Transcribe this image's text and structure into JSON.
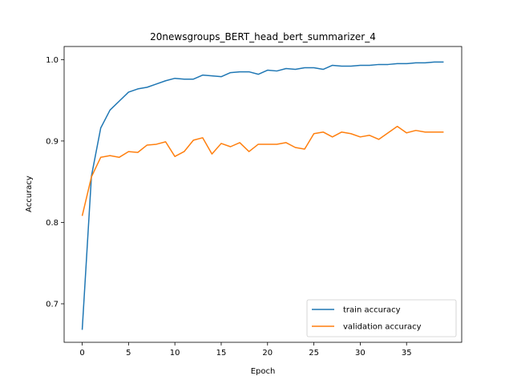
{
  "chart_data": {
    "type": "line",
    "title": "20newsgroups_BERT_head_bert_summarizer_4",
    "xlabel": "Epoch",
    "ylabel": "Accuracy",
    "xlim": [
      -1.95,
      40.95
    ],
    "ylim": [
      0.6527,
      1.0161
    ],
    "xticks": [
      0,
      5,
      10,
      15,
      20,
      25,
      30,
      35
    ],
    "yticks": [
      0.7,
      0.8,
      0.9,
      1.0
    ],
    "xtick_labels": [
      "0",
      "5",
      "10",
      "15",
      "20",
      "25",
      "30",
      "35"
    ],
    "ytick_labels": [
      "0.7",
      "0.8",
      "0.9",
      "1.0"
    ],
    "grid": false,
    "legend_position": "lower right",
    "x": [
      0,
      1,
      2,
      3,
      4,
      5,
      6,
      7,
      8,
      9,
      10,
      11,
      12,
      13,
      14,
      15,
      16,
      17,
      18,
      19,
      20,
      21,
      22,
      23,
      24,
      25,
      26,
      27,
      28,
      29,
      30,
      31,
      32,
      33,
      34,
      35,
      36,
      37,
      38,
      39
    ],
    "series": [
      {
        "name": "train accuracy",
        "color": "#1f77b4",
        "values": [
          0.668,
          0.857,
          0.916,
          0.938,
          0.949,
          0.96,
          0.964,
          0.966,
          0.97,
          0.974,
          0.977,
          0.976,
          0.976,
          0.981,
          0.98,
          0.979,
          0.984,
          0.985,
          0.985,
          0.982,
          0.987,
          0.986,
          0.989,
          0.988,
          0.99,
          0.99,
          0.988,
          0.993,
          0.992,
          0.992,
          0.993,
          0.993,
          0.994,
          0.994,
          0.995,
          0.995,
          0.996,
          0.996,
          0.997,
          0.997
        ]
      },
      {
        "name": "validation accuracy",
        "color": "#ff7f0e",
        "values": [
          0.808,
          0.856,
          0.88,
          0.882,
          0.88,
          0.887,
          0.886,
          0.895,
          0.896,
          0.899,
          0.881,
          0.887,
          0.901,
          0.904,
          0.884,
          0.897,
          0.893,
          0.898,
          0.887,
          0.896,
          0.896,
          0.896,
          0.898,
          0.892,
          0.89,
          0.909,
          0.911,
          0.905,
          0.911,
          0.909,
          0.905,
          0.907,
          0.902,
          0.91,
          0.918,
          0.91,
          0.913,
          0.911,
          0.911,
          0.911
        ]
      }
    ]
  }
}
